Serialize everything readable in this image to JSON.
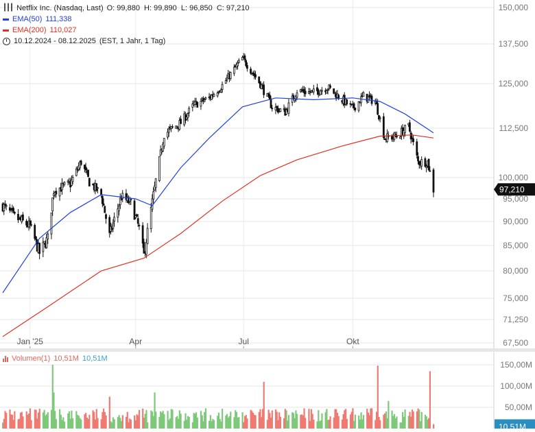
{
  "header": {
    "title": "Netflix Inc. (Nasdaq, Last)",
    "ohlc": "O: 99,880  H: 99,890  L: 96,850  C: 97,210",
    "ema50": {
      "label": "EMA(50)",
      "value": "111,338",
      "color": "#2040e0"
    },
    "ema200": {
      "label": "EMA(200)",
      "value": "110,027",
      "color": "#e03020"
    },
    "period": "10.12.2024 - 08.12.2025",
    "period_detail": "(EST, 1 Jahr, 1 Tag)"
  },
  "volume_legend": {
    "label": "Volumen(1)",
    "value_red": "10,51M",
    "value_blue": "10,51M"
  },
  "last_price_label": "97,210",
  "last_volume_label": "10,51M",
  "chart_data": [
    {
      "type": "candlestick",
      "title": "Netflix Inc. (Nasdaq, Last)",
      "y_ticks": [
        "150,000",
        "137,500",
        "125,000",
        "112,500",
        "100,000",
        "95,000",
        "90,000",
        "85,000",
        "80,000",
        "75,000",
        "71,250",
        "67,500"
      ],
      "x_ticks": [
        "Jan '25",
        "Apr",
        "Jul",
        "Okt"
      ],
      "grid": true,
      "close_approx": [
        {
          "x": "2024-12-10",
          "y": 93.5
        },
        {
          "x": "2024-12-20",
          "y": 91.0
        },
        {
          "x": "2025-01-02",
          "y": 89.0
        },
        {
          "x": "2025-01-10",
          "y": 83.5
        },
        {
          "x": "2025-01-17",
          "y": 86.5
        },
        {
          "x": "2025-01-22",
          "y": 97.0
        },
        {
          "x": "2025-02-05",
          "y": 98.5
        },
        {
          "x": "2025-02-14",
          "y": 104.0
        },
        {
          "x": "2025-02-21",
          "y": 99.0
        },
        {
          "x": "2025-03-03",
          "y": 96.0
        },
        {
          "x": "2025-03-10",
          "y": 87.0
        },
        {
          "x": "2025-03-20",
          "y": 95.5
        },
        {
          "x": "2025-03-28",
          "y": 94.0
        },
        {
          "x": "2025-04-04",
          "y": 88.5
        },
        {
          "x": "2025-04-08",
          "y": 83.0
        },
        {
          "x": "2025-04-17",
          "y": 97.5
        },
        {
          "x": "2025-04-25",
          "y": 111.0
        },
        {
          "x": "2025-05-09",
          "y": 114.0
        },
        {
          "x": "2025-05-20",
          "y": 119.0
        },
        {
          "x": "2025-06-02",
          "y": 121.0
        },
        {
          "x": "2025-06-13",
          "y": 124.5
        },
        {
          "x": "2025-06-30",
          "y": 133.0
        },
        {
          "x": "2025-07-15",
          "y": 125.0
        },
        {
          "x": "2025-07-25",
          "y": 118.5
        },
        {
          "x": "2025-08-05",
          "y": 117.0
        },
        {
          "x": "2025-08-15",
          "y": 123.0
        },
        {
          "x": "2025-08-29",
          "y": 122.5
        },
        {
          "x": "2025-09-10",
          "y": 124.0
        },
        {
          "x": "2025-09-22",
          "y": 120.5
        },
        {
          "x": "2025-10-01",
          "y": 118.0
        },
        {
          "x": "2025-10-10",
          "y": 121.5
        },
        {
          "x": "2025-10-20",
          "y": 120.0
        },
        {
          "x": "2025-10-28",
          "y": 110.0
        },
        {
          "x": "2025-11-07",
          "y": 110.5
        },
        {
          "x": "2025-11-17",
          "y": 113.0
        },
        {
          "x": "2025-11-25",
          "y": 104.0
        },
        {
          "x": "2025-12-03",
          "y": 104.0
        },
        {
          "x": "2025-12-08",
          "y": 97.21
        }
      ],
      "series": [
        {
          "name": "EMA(50)",
          "color": "#2040e0",
          "values": [
            {
              "x": "2024-12-10",
              "y": 76.0
            },
            {
              "x": "2025-01-10",
              "y": 86.5
            },
            {
              "x": "2025-02-05",
              "y": 92.0
            },
            {
              "x": "2025-03-03",
              "y": 96.0
            },
            {
              "x": "2025-04-01",
              "y": 95.0
            },
            {
              "x": "2025-04-15",
              "y": 93.5
            },
            {
              "x": "2025-05-09",
              "y": 102.5
            },
            {
              "x": "2025-06-02",
              "y": 110.0
            },
            {
              "x": "2025-06-30",
              "y": 118.5
            },
            {
              "x": "2025-07-28",
              "y": 121.0
            },
            {
              "x": "2025-08-29",
              "y": 120.5
            },
            {
              "x": "2025-10-01",
              "y": 121.0
            },
            {
              "x": "2025-10-24",
              "y": 120.0
            },
            {
              "x": "2025-11-14",
              "y": 116.5
            },
            {
              "x": "2025-12-08",
              "y": 111.338
            }
          ]
        },
        {
          "name": "EMA(200)",
          "color": "#e03020",
          "values": [
            {
              "x": "2024-12-10",
              "y": 68.5
            },
            {
              "x": "2025-01-17",
              "y": 73.5
            },
            {
              "x": "2025-03-03",
              "y": 80.0
            },
            {
              "x": "2025-04-08",
              "y": 82.5
            },
            {
              "x": "2025-05-09",
              "y": 87.5
            },
            {
              "x": "2025-06-13",
              "y": 94.5
            },
            {
              "x": "2025-07-15",
              "y": 100.5
            },
            {
              "x": "2025-08-15",
              "y": 104.5
            },
            {
              "x": "2025-09-22",
              "y": 108.0
            },
            {
              "x": "2025-10-24",
              "y": 110.5
            },
            {
              "x": "2025-11-20",
              "y": 110.8
            },
            {
              "x": "2025-12-08",
              "y": 110.027
            }
          ]
        }
      ]
    },
    {
      "type": "bar",
      "title": "Volumen(1)",
      "y_ticks": [
        "150,00M",
        "100,00M",
        "50,00M"
      ],
      "values_approx_M": [
        {
          "x": "2025-01-21",
          "y": 150
        },
        {
          "x": "2025-01-22",
          "y": 85
        },
        {
          "x": "2025-03-10",
          "y": 75
        },
        {
          "x": "2025-04-17",
          "y": 85
        },
        {
          "x": "2025-07-18",
          "y": 110
        },
        {
          "x": "2025-10-22",
          "y": 148
        },
        {
          "x": "2025-10-31",
          "y": 65
        },
        {
          "x": "2025-12-05",
          "y": 135
        },
        {
          "x": "2025-12-08",
          "y": 10.51
        }
      ]
    }
  ]
}
